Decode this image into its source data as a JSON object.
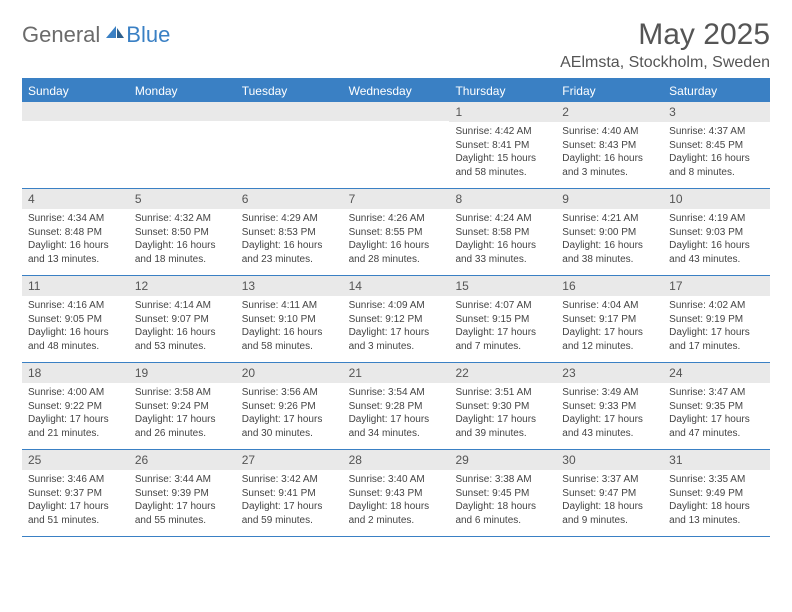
{
  "brand": {
    "general": "General",
    "blue": "Blue"
  },
  "title": "May 2025",
  "location": "AElmsta, Stockholm, Sweden",
  "colors": {
    "header_bg": "#3a80c4",
    "header_text": "#ffffff",
    "daynum_bg": "#e9e9e9",
    "border": "#3a80c4",
    "body_text": "#444444",
    "title_text": "#555555"
  },
  "day_names": [
    "Sunday",
    "Monday",
    "Tuesday",
    "Wednesday",
    "Thursday",
    "Friday",
    "Saturday"
  ],
  "weeks": [
    [
      null,
      null,
      null,
      null,
      {
        "n": "1",
        "sr": "4:42 AM",
        "ss": "8:41 PM",
        "dl": "15 hours and 58 minutes."
      },
      {
        "n": "2",
        "sr": "4:40 AM",
        "ss": "8:43 PM",
        "dl": "16 hours and 3 minutes."
      },
      {
        "n": "3",
        "sr": "4:37 AM",
        "ss": "8:45 PM",
        "dl": "16 hours and 8 minutes."
      }
    ],
    [
      {
        "n": "4",
        "sr": "4:34 AM",
        "ss": "8:48 PM",
        "dl": "16 hours and 13 minutes."
      },
      {
        "n": "5",
        "sr": "4:32 AM",
        "ss": "8:50 PM",
        "dl": "16 hours and 18 minutes."
      },
      {
        "n": "6",
        "sr": "4:29 AM",
        "ss": "8:53 PM",
        "dl": "16 hours and 23 minutes."
      },
      {
        "n": "7",
        "sr": "4:26 AM",
        "ss": "8:55 PM",
        "dl": "16 hours and 28 minutes."
      },
      {
        "n": "8",
        "sr": "4:24 AM",
        "ss": "8:58 PM",
        "dl": "16 hours and 33 minutes."
      },
      {
        "n": "9",
        "sr": "4:21 AM",
        "ss": "9:00 PM",
        "dl": "16 hours and 38 minutes."
      },
      {
        "n": "10",
        "sr": "4:19 AM",
        "ss": "9:03 PM",
        "dl": "16 hours and 43 minutes."
      }
    ],
    [
      {
        "n": "11",
        "sr": "4:16 AM",
        "ss": "9:05 PM",
        "dl": "16 hours and 48 minutes."
      },
      {
        "n": "12",
        "sr": "4:14 AM",
        "ss": "9:07 PM",
        "dl": "16 hours and 53 minutes."
      },
      {
        "n": "13",
        "sr": "4:11 AM",
        "ss": "9:10 PM",
        "dl": "16 hours and 58 minutes."
      },
      {
        "n": "14",
        "sr": "4:09 AM",
        "ss": "9:12 PM",
        "dl": "17 hours and 3 minutes."
      },
      {
        "n": "15",
        "sr": "4:07 AM",
        "ss": "9:15 PM",
        "dl": "17 hours and 7 minutes."
      },
      {
        "n": "16",
        "sr": "4:04 AM",
        "ss": "9:17 PM",
        "dl": "17 hours and 12 minutes."
      },
      {
        "n": "17",
        "sr": "4:02 AM",
        "ss": "9:19 PM",
        "dl": "17 hours and 17 minutes."
      }
    ],
    [
      {
        "n": "18",
        "sr": "4:00 AM",
        "ss": "9:22 PM",
        "dl": "17 hours and 21 minutes."
      },
      {
        "n": "19",
        "sr": "3:58 AM",
        "ss": "9:24 PM",
        "dl": "17 hours and 26 minutes."
      },
      {
        "n": "20",
        "sr": "3:56 AM",
        "ss": "9:26 PM",
        "dl": "17 hours and 30 minutes."
      },
      {
        "n": "21",
        "sr": "3:54 AM",
        "ss": "9:28 PM",
        "dl": "17 hours and 34 minutes."
      },
      {
        "n": "22",
        "sr": "3:51 AM",
        "ss": "9:30 PM",
        "dl": "17 hours and 39 minutes."
      },
      {
        "n": "23",
        "sr": "3:49 AM",
        "ss": "9:33 PM",
        "dl": "17 hours and 43 minutes."
      },
      {
        "n": "24",
        "sr": "3:47 AM",
        "ss": "9:35 PM",
        "dl": "17 hours and 47 minutes."
      }
    ],
    [
      {
        "n": "25",
        "sr": "3:46 AM",
        "ss": "9:37 PM",
        "dl": "17 hours and 51 minutes."
      },
      {
        "n": "26",
        "sr": "3:44 AM",
        "ss": "9:39 PM",
        "dl": "17 hours and 55 minutes."
      },
      {
        "n": "27",
        "sr": "3:42 AM",
        "ss": "9:41 PM",
        "dl": "17 hours and 59 minutes."
      },
      {
        "n": "28",
        "sr": "3:40 AM",
        "ss": "9:43 PM",
        "dl": "18 hours and 2 minutes."
      },
      {
        "n": "29",
        "sr": "3:38 AM",
        "ss": "9:45 PM",
        "dl": "18 hours and 6 minutes."
      },
      {
        "n": "30",
        "sr": "3:37 AM",
        "ss": "9:47 PM",
        "dl": "18 hours and 9 minutes."
      },
      {
        "n": "31",
        "sr": "3:35 AM",
        "ss": "9:49 PM",
        "dl": "18 hours and 13 minutes."
      }
    ]
  ],
  "labels": {
    "sunrise": "Sunrise: ",
    "sunset": "Sunset: ",
    "daylight": "Daylight: "
  }
}
